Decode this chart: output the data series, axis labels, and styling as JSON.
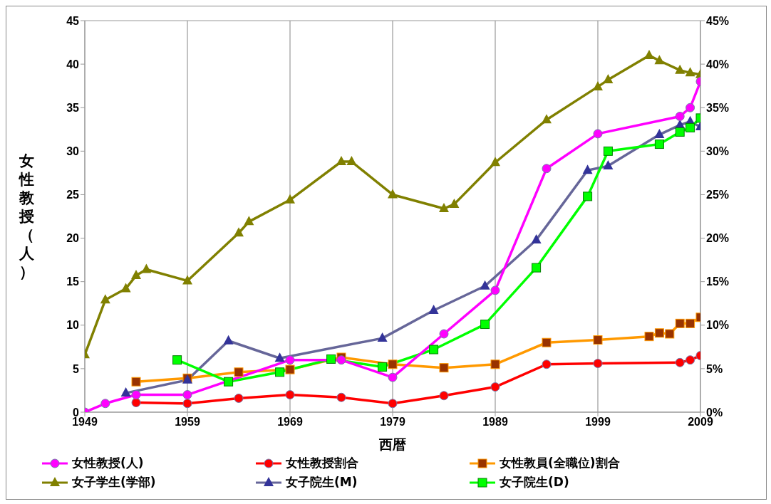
{
  "chart_data": {
    "type": "line",
    "xlabel": "西暦",
    "ylabel": "女性教授（人）",
    "xlim": [
      1949,
      2009
    ],
    "xticks": [
      1949,
      1959,
      1969,
      1979,
      1989,
      1999,
      2009
    ],
    "ylim": [
      0,
      45
    ],
    "yticks": [
      0,
      5,
      10,
      15,
      20,
      25,
      30,
      35,
      40,
      45
    ],
    "y2lim": [
      0,
      45
    ],
    "y2ticks": [
      {
        "value": 0,
        "label": "0%"
      },
      {
        "value": 5,
        "label": "5%"
      },
      {
        "value": 10,
        "label": "10%"
      },
      {
        "value": 15,
        "label": "15%"
      },
      {
        "value": 20,
        "label": "20%"
      },
      {
        "value": 25,
        "label": "25%"
      },
      {
        "value": 30,
        "label": "30%"
      },
      {
        "value": 35,
        "label": "35%"
      },
      {
        "value": 40,
        "label": "40%"
      },
      {
        "value": 45,
        "label": "45%"
      }
    ],
    "grid": true,
    "legend": "bottom",
    "series": [
      {
        "name": "女性教授(人)",
        "color": "#ff00ff",
        "marker": "circle",
        "x": [
          1949,
          1951,
          1954,
          1959,
          1969,
          1974,
          1979,
          1984,
          1989,
          1994,
          1999,
          2007,
          2008,
          2009
        ],
        "values": [
          0,
          1,
          2,
          2,
          6,
          6,
          4,
          9,
          14,
          28,
          32,
          34,
          35,
          38
        ]
      },
      {
        "name": "女性教授割合",
        "color": "#ff0000",
        "marker": "circle",
        "axis": "y2",
        "x": [
          1954,
          1959,
          1964,
          1969,
          1974,
          1979,
          1984,
          1989,
          1994,
          1999,
          2007,
          2008,
          2009
        ],
        "values": [
          1.1,
          1.0,
          1.6,
          2.0,
          1.7,
          1.0,
          1.9,
          2.9,
          5.5,
          5.6,
          5.7,
          6.0,
          6.5
        ]
      },
      {
        "name": "女性教員(全職位)割合",
        "color": "#ff9900",
        "marker": "square",
        "axis": "y2",
        "x": [
          1954,
          1959,
          1964,
          1969,
          1974,
          1979,
          1984,
          1989,
          1994,
          1999,
          2004,
          2005,
          2006,
          2007,
          2008,
          2009
        ],
        "values": [
          3.5,
          3.9,
          4.6,
          4.9,
          6.3,
          5.5,
          5.1,
          5.5,
          8.0,
          8.3,
          8.7,
          9.1,
          9.0,
          10.2,
          10.2,
          10.9
        ]
      },
      {
        "name": "女子学生(学部)",
        "color": "#808000",
        "marker": "triangle",
        "x": [
          1949,
          1951,
          1953,
          1954,
          1955,
          1959,
          1964,
          1965,
          1969,
          1974,
          1975,
          1979,
          1984,
          1985,
          1989,
          1994,
          1999,
          2000,
          2004,
          2005,
          2007,
          2008,
          2009
        ],
        "values": [
          6.6,
          12.9,
          14.2,
          15.7,
          16.4,
          15.1,
          20.6,
          21.9,
          24.4,
          28.8,
          28.8,
          25.0,
          23.4,
          23.9,
          28.7,
          33.6,
          37.4,
          38.2,
          41.0,
          40.4,
          39.3,
          39.0,
          38.8
        ]
      },
      {
        "name": "女子院生(M)",
        "color": "#666699",
        "marker": "triangle",
        "x": [
          1953,
          1959,
          1963,
          1968,
          1978,
          1983,
          1988,
          1993,
          1998,
          2000,
          2005,
          2007,
          2008,
          2009
        ],
        "values": [
          2.2,
          3.7,
          8.2,
          6.2,
          8.5,
          11.7,
          14.5,
          19.8,
          27.8,
          28.3,
          31.9,
          33.0,
          33.4,
          32.8
        ]
      },
      {
        "name": "女子院生(D)",
        "color": "#00ff00",
        "marker": "square",
        "x": [
          1958,
          1963,
          1968,
          1973,
          1978,
          1983,
          1988,
          1993,
          1998,
          2000,
          2005,
          2007,
          2008,
          2009
        ],
        "values": [
          6.0,
          3.5,
          4.6,
          6.1,
          5.2,
          7.2,
          10.1,
          16.6,
          24.8,
          30.0,
          30.8,
          32.2,
          32.7,
          33.8
        ]
      }
    ]
  }
}
